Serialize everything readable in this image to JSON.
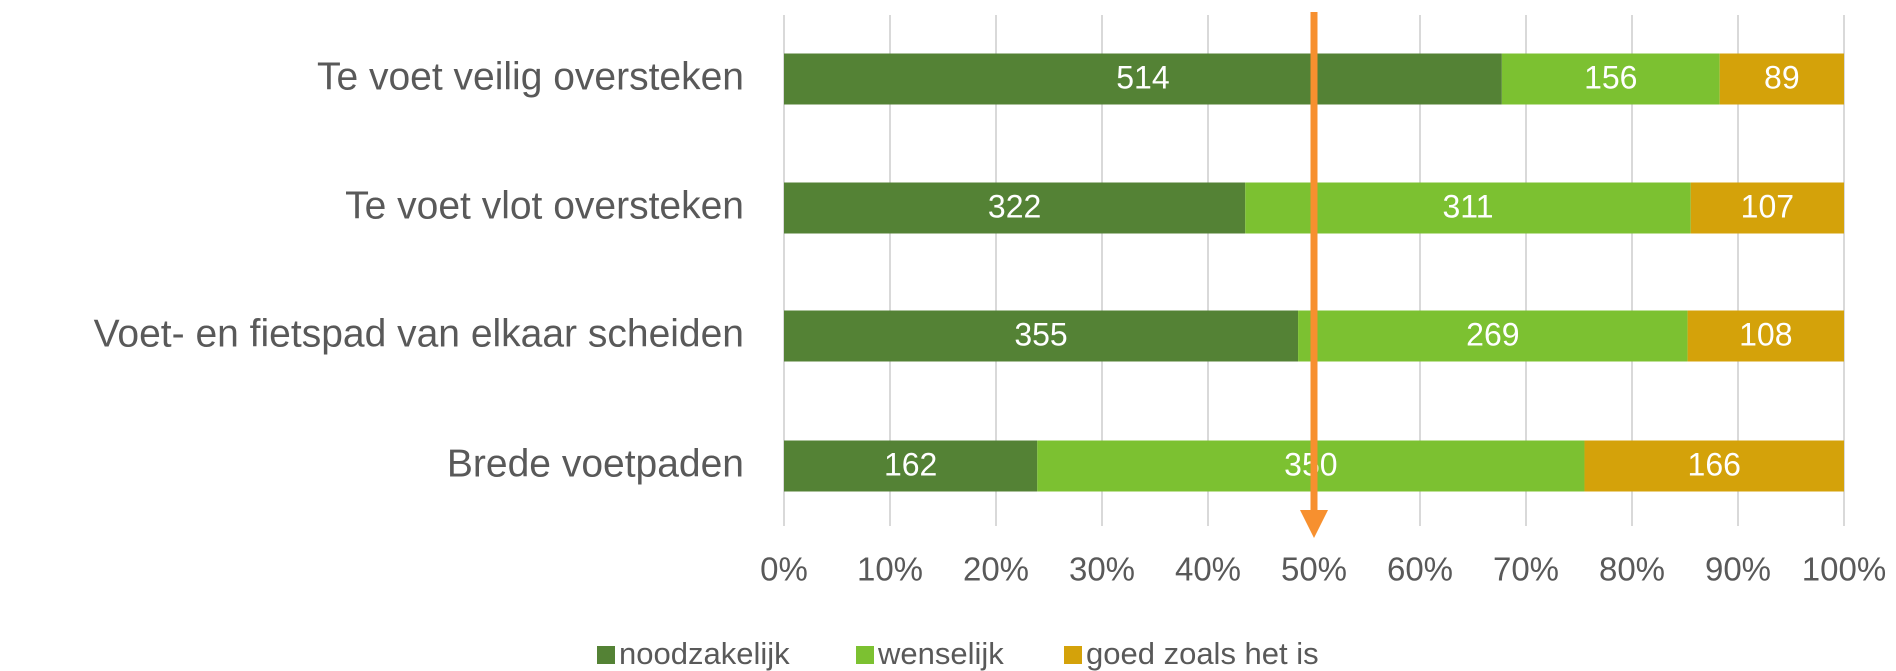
{
  "chart_data": {
    "type": "stacked_bar_100",
    "orientation": "horizontal",
    "categories": [
      "Te voet veilig oversteken",
      "Te voet vlot oversteken",
      "Voet- en fietspad van elkaar scheiden",
      "Brede voetpaden"
    ],
    "series": [
      {
        "name": "noodzakelijk",
        "color": "#548235",
        "values": [
          514,
          322,
          355,
          162
        ]
      },
      {
        "name": "wenselijk",
        "color": "#7cc131",
        "values": [
          156,
          311,
          269,
          350
        ]
      },
      {
        "name": "goed zoals het is",
        "color": "#d4a20a",
        "values": [
          89,
          107,
          108,
          166
        ]
      }
    ],
    "xlim": [
      0,
      100
    ],
    "xticks": [
      {
        "value": 0,
        "label": "0%"
      },
      {
        "value": 10,
        "label": "10%"
      },
      {
        "value": 20,
        "label": "20%"
      },
      {
        "value": 30,
        "label": "30%"
      },
      {
        "value": 40,
        "label": "40%"
      },
      {
        "value": 50,
        "label": "50%"
      },
      {
        "value": 60,
        "label": "60%"
      },
      {
        "value": 70,
        "label": "70%"
      },
      {
        "value": 80,
        "label": "80%"
      },
      {
        "value": 90,
        "label": "90%"
      },
      {
        "value": 100,
        "label": "100%"
      }
    ],
    "grid": true,
    "reference_arrow": {
      "value": 50,
      "color": "#f7902f"
    },
    "legend": "bottom"
  }
}
